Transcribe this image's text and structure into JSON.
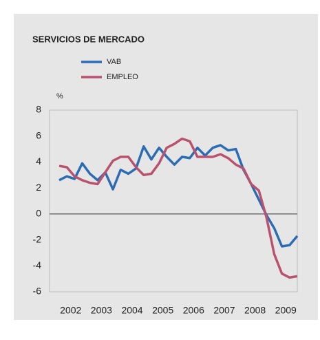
{
  "chart_data": {
    "type": "line",
    "title": "SERVICIOS DE MERCADO",
    "ylabel": "%",
    "categories": [
      "2002",
      null,
      null,
      null,
      "2003",
      null,
      null,
      null,
      "2004",
      null,
      null,
      null,
      "2005",
      null,
      null,
      null,
      "2006",
      null,
      null,
      null,
      "2007",
      null,
      null,
      null,
      "2008",
      null,
      null,
      null,
      "2009",
      null,
      null,
      null
    ],
    "series": [
      {
        "name": "VAB",
        "color": "#2b6cb3",
        "values": [
          2.6,
          2.9,
          2.7,
          3.9,
          3.1,
          2.6,
          3.2,
          1.9,
          3.4,
          3.1,
          3.5,
          5.2,
          4.2,
          5.1,
          4.4,
          3.8,
          4.4,
          4.3,
          5.1,
          4.5,
          5.1,
          5.3,
          4.9,
          5.0,
          3.4,
          2.3,
          1.1,
          -0.1,
          -1.1,
          -2.5,
          -2.4,
          -1.7
        ]
      },
      {
        "name": "EMPLEO",
        "color": "#b8526e",
        "values": [
          3.7,
          3.6,
          2.9,
          2.6,
          2.4,
          2.3,
          3.2,
          4.1,
          4.4,
          4.4,
          3.6,
          3.0,
          3.1,
          3.9,
          5.1,
          5.4,
          5.8,
          5.6,
          4.4,
          4.4,
          4.4,
          4.6,
          4.3,
          3.8,
          3.5,
          2.3,
          1.8,
          -0.3,
          -3.1,
          -4.6,
          -4.9,
          -4.8
        ]
      }
    ],
    "ylim": [
      -6,
      8
    ],
    "yticks": [
      8,
      6,
      4,
      2,
      0,
      -2,
      -4,
      -6
    ],
    "grid": false,
    "legend": "top-left"
  }
}
